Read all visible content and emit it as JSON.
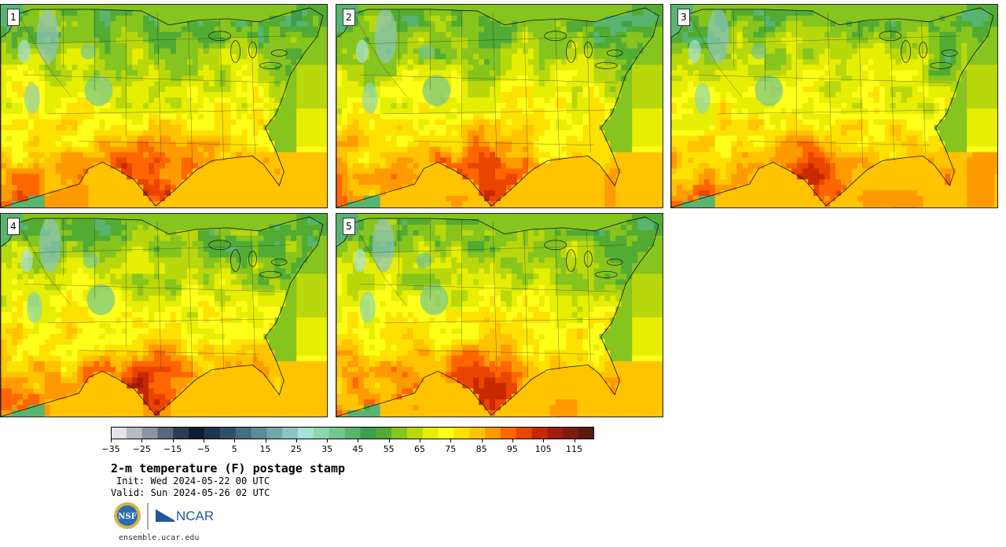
{
  "panels": [
    {
      "label": "1",
      "variant": 0
    },
    {
      "label": "2",
      "variant": 1
    },
    {
      "label": "3",
      "variant": 2
    },
    {
      "label": "4",
      "variant": 3
    },
    {
      "label": "5",
      "variant": 4
    }
  ],
  "colorbar": {
    "colors": [
      "#e3e4e8",
      "#b8bcc6",
      "#8c93a3",
      "#5c667e",
      "#2e3b55",
      "#0f1d33",
      "#1d3550",
      "#2f4e68",
      "#456d80",
      "#5b8b96",
      "#73a8ac",
      "#8cc4c2",
      "#a6e2d8",
      "#8fd7b0",
      "#74c690",
      "#58b570",
      "#3e9e4e",
      "#52ab32",
      "#86c41e",
      "#b8d80c",
      "#e6ee02",
      "#ffff1a",
      "#ffe100",
      "#ffc300",
      "#ff9a00",
      "#ff6600",
      "#ea4400",
      "#c82800",
      "#a31c0c",
      "#7e1b10",
      "#5a1a10"
    ],
    "tick_labels": [
      "−35",
      "−25",
      "−15",
      "−5",
      "5",
      "15",
      "25",
      "35",
      "45",
      "55",
      "65",
      "75",
      "85",
      "95",
      "105",
      "115"
    ]
  },
  "title": "2-m temperature (F) postage stamp",
  "init": "Init: Wed 2024-05-22 00 UTC",
  "valid": "Valid: Sun 2024-05-26 02 UTC",
  "logos": {
    "nsf_text": "NSF",
    "ncar_text": "NCAR"
  },
  "website": "ensemble.ucar.edu"
}
